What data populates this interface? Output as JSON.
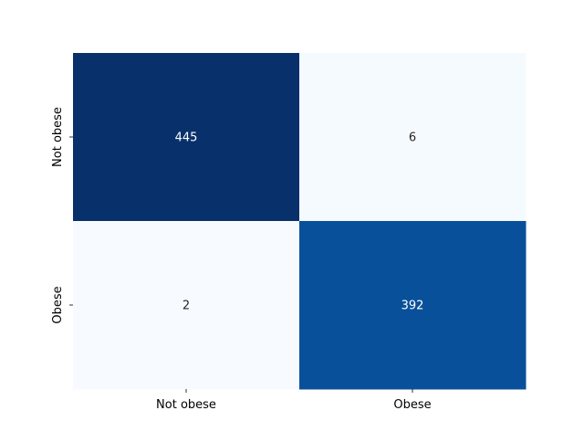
{
  "chart_data": {
    "type": "heatmap",
    "x_categories": [
      "Not obese",
      "Obese"
    ],
    "y_categories": [
      "Not obese",
      "Obese"
    ],
    "values": [
      [
        445,
        6
      ],
      [
        2,
        392
      ]
    ],
    "colormap": "Blues",
    "color_range": [
      2,
      445
    ],
    "colorbar": false,
    "annotations": true,
    "title": "",
    "xlabel": "",
    "ylabel": ""
  }
}
